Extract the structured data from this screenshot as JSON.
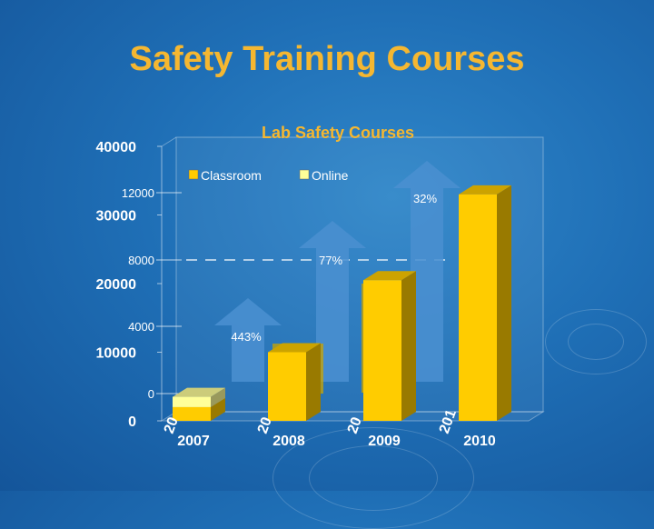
{
  "slide": {
    "title": "Safety Training Courses",
    "title_color": "#F5B731"
  },
  "chart_data": {
    "type": "bar",
    "title": "Lab Safety Courses",
    "title_color": "#F5B731",
    "stacked": true,
    "xlabel": "",
    "ylabel": "",
    "categories": [
      "2007",
      "2008",
      "2009",
      "2010"
    ],
    "series": [
      {
        "name": "Classroom",
        "color": "#FFCC00",
        "values": [
          2000,
          10000,
          20500,
          33000
        ]
      },
      {
        "name": "Online",
        "color": "#FFFF99",
        "values": [
          1500,
          0,
          0,
          0
        ]
      }
    ],
    "ylim": [
      0,
      40000
    ],
    "yticks": [
      "0",
      "10000",
      "20000",
      "30000",
      "40000"
    ],
    "legend_position": "top-center",
    "overlay_axis": {
      "ticks": [
        "0",
        "4000",
        "8000",
        "12000"
      ],
      "reference_value": "8000"
    },
    "growth_arrows": [
      {
        "label": "443%",
        "category": "2007"
      },
      {
        "label": "77%",
        "category": "2008"
      },
      {
        "label": "32%",
        "category": "2009"
      }
    ],
    "ghost_labels": [
      "20",
      "20",
      "20",
      "201"
    ]
  }
}
